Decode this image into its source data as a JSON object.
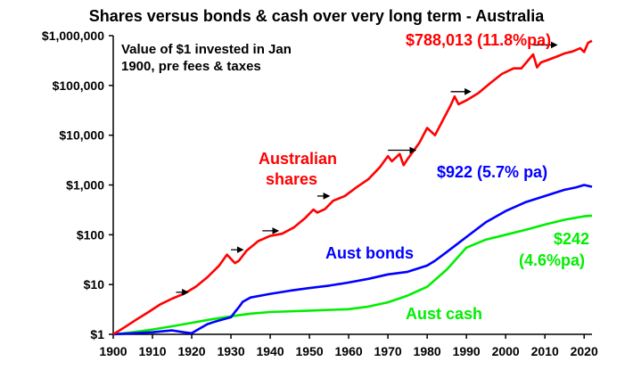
{
  "chart_data": {
    "type": "line",
    "title": "Shares versus bonds & cash over very long term - Australia",
    "note_line1": "Value of $1 invested in Jan",
    "note_line2": "1900, pre fees & taxes",
    "xlabel": "",
    "ylabel": "",
    "y_scale": "log",
    "xlim": [
      1900,
      2022
    ],
    "ylim": [
      1,
      1000000
    ],
    "x_ticks": [
      "1900",
      "1910",
      "1920",
      "1930",
      "1940",
      "1950",
      "1960",
      "1970",
      "1980",
      "1990",
      "2000",
      "2010",
      "2020"
    ],
    "y_ticks": [
      {
        "value": 1,
        "label": "$1"
      },
      {
        "value": 10,
        "label": "$10"
      },
      {
        "value": 100,
        "label": "$100"
      },
      {
        "value": 1000,
        "label": "$1,000"
      },
      {
        "value": 10000,
        "label": "$10,000"
      },
      {
        "value": 100000,
        "label": "$100,000"
      },
      {
        "value": 1000000,
        "label": "$1,000,000"
      }
    ],
    "grid": false,
    "series": [
      {
        "name": "Australian shares",
        "color": "#ff0000",
        "x": [
          1900,
          1903,
          1906,
          1909,
          1912,
          1915,
          1918,
          1921,
          1924,
          1927,
          1929,
          1931,
          1932,
          1934,
          1937,
          1940,
          1943,
          1946,
          1949,
          1951,
          1952,
          1954,
          1956,
          1959,
          1962,
          1965,
          1968,
          1970,
          1971,
          1973,
          1974,
          1975,
          1978,
          1980,
          1982,
          1984,
          1986,
          1987,
          1988,
          1990,
          1993,
          1996,
          1999,
          2002,
          2004,
          2007,
          2008,
          2009,
          2011,
          2013,
          2015,
          2017,
          2019,
          2020,
          2021,
          2022
        ],
        "values": [
          1,
          1.4,
          2.0,
          2.8,
          4.0,
          5.2,
          6.5,
          9,
          14,
          24,
          40,
          27,
          30,
          48,
          75,
          95,
          105,
          140,
          220,
          320,
          280,
          330,
          480,
          600,
          900,
          1300,
          2300,
          3800,
          3000,
          4200,
          2500,
          3300,
          7000,
          14000,
          10000,
          20000,
          40000,
          60000,
          42000,
          50000,
          70000,
          110000,
          170000,
          220000,
          220000,
          420000,
          230000,
          290000,
          330000,
          380000,
          440000,
          480000,
          560000,
          470000,
          720000,
          788013
        ]
      },
      {
        "name": "Aust bonds",
        "color": "#0000ff",
        "x": [
          1900,
          1905,
          1910,
          1915,
          1918,
          1920,
          1922,
          1924,
          1926,
          1928,
          1930,
          1931,
          1932,
          1933,
          1935,
          1940,
          1945,
          1950,
          1955,
          1960,
          1965,
          1970,
          1975,
          1980,
          1982,
          1985,
          1990,
          1995,
          2000,
          2005,
          2010,
          2015,
          2018,
          2020,
          2022
        ],
        "values": [
          1,
          1.05,
          1.1,
          1.2,
          1.1,
          1.05,
          1.3,
          1.6,
          1.8,
          2.0,
          2.2,
          2.8,
          3.5,
          4.5,
          5.5,
          6.5,
          7.5,
          8.5,
          9.5,
          11,
          13,
          16,
          18,
          24,
          30,
          45,
          90,
          180,
          300,
          450,
          600,
          800,
          900,
          1000,
          922
        ]
      },
      {
        "name": "Aust cash",
        "color": "#00ee00",
        "x": [
          1900,
          1905,
          1910,
          1915,
          1920,
          1925,
          1930,
          1935,
          1940,
          1950,
          1960,
          1965,
          1970,
          1975,
          1980,
          1985,
          1990,
          1995,
          2000,
          2005,
          2010,
          2015,
          2020,
          2022
        ],
        "values": [
          1,
          1.1,
          1.25,
          1.45,
          1.7,
          2.0,
          2.3,
          2.6,
          2.8,
          3.0,
          3.2,
          3.6,
          4.4,
          6.0,
          9.0,
          20,
          55,
          80,
          100,
          125,
          160,
          200,
          235,
          242
        ]
      }
    ],
    "annotations": {
      "shares_end": "$788,013 (11.8%pa)",
      "bonds_end": "$922 (5.7% pa)",
      "cash_end_value": "$242",
      "cash_end_rate": "(4.6%pa)",
      "shares_label_1": "Australian",
      "shares_label_2": "shares",
      "bonds_label": "Aust bonds",
      "cash_label": "Aust cash"
    },
    "arrows": [
      {
        "x1": 1916,
        "x2": 1919,
        "y": 7
      },
      {
        "x1": 1930,
        "x2": 1933,
        "y": 50
      },
      {
        "x1": 1938,
        "x2": 1942,
        "y": 120
      },
      {
        "x1": 1952,
        "x2": 1955,
        "y": 600
      },
      {
        "x1": 1970,
        "x2": 1977,
        "y": 5000
      },
      {
        "x1": 1986,
        "x2": 1991,
        "y": 75000
      },
      {
        "x1": 2007,
        "x2": 2013,
        "y": 650000
      }
    ]
  }
}
